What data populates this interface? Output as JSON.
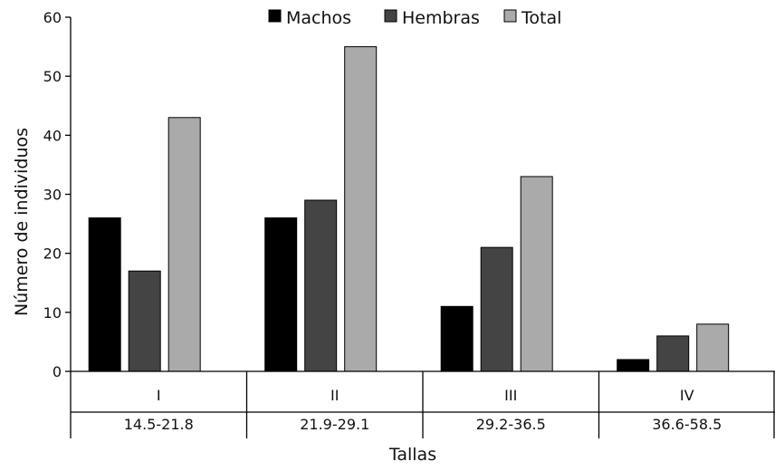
{
  "chart_data": {
    "type": "bar",
    "categories": [
      "I",
      "II",
      "III",
      "IV"
    ],
    "subcategories": [
      "14.5-21.8",
      "21.9-29.1",
      "29.2-36.5",
      "36.6-58.5"
    ],
    "series": [
      {
        "name": "Machos",
        "color": "#000000",
        "values": [
          26,
          26,
          11,
          2
        ]
      },
      {
        "name": "Hembras",
        "color": "#444444",
        "values": [
          17,
          29,
          21,
          6
        ]
      },
      {
        "name": "Total",
        "color": "#aaaaaa",
        "values": [
          43,
          55,
          33,
          8
        ]
      }
    ],
    "ylim": [
      0,
      60
    ],
    "yticks": [
      0,
      10,
      20,
      30,
      40,
      50,
      60
    ],
    "xlabel": "Tallas",
    "ylabel": "Número de individuos",
    "legend_position": "top"
  }
}
